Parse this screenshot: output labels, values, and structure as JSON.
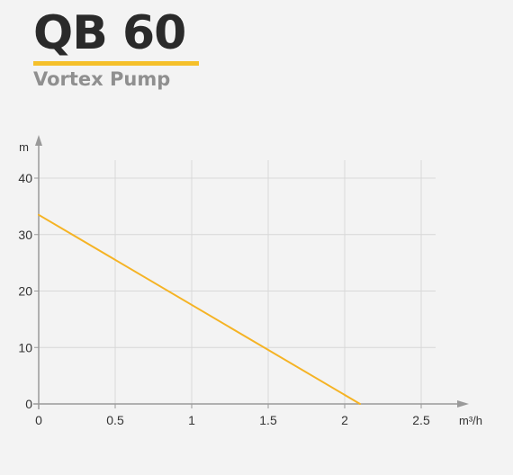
{
  "brand": {
    "title": "QB 60",
    "subtitle": "Vortex Pump",
    "accent_color": "#f5c02a"
  },
  "chart_data": {
    "type": "line",
    "title": "",
    "xlabel": "m³/h",
    "ylabel": "m",
    "xlim": [
      0,
      2.5
    ],
    "ylim": [
      0,
      40
    ],
    "x_ticks": [
      0,
      0.5,
      1,
      1.5,
      2,
      2.5
    ],
    "x_tick_labels": [
      "0",
      "0.5",
      "1",
      "1.5",
      "2",
      "2.5"
    ],
    "y_ticks": [
      0,
      10,
      20,
      30,
      40
    ],
    "y_tick_labels": [
      "0",
      "10",
      "20",
      "30",
      "40"
    ],
    "grid": true,
    "series": [
      {
        "color": "#f5b324",
        "x": [
          0,
          2.1
        ],
        "y": [
          33.5,
          0
        ]
      }
    ]
  }
}
